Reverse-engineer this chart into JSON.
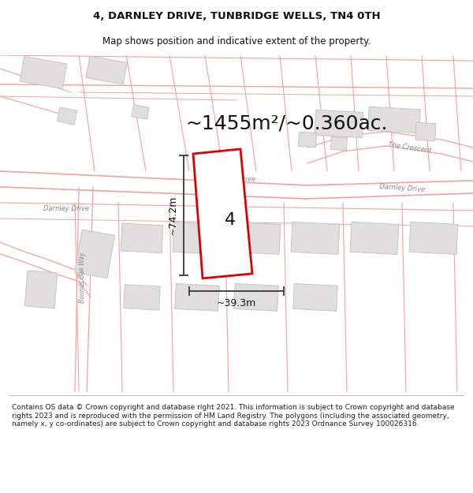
{
  "title_line1": "4, DARNLEY DRIVE, TUNBRIDGE WELLS, TN4 0TH",
  "title_line2": "Map shows position and indicative extent of the property.",
  "area_text": "~1455m²/~0.360ac.",
  "property_number": "4",
  "dim_height": "~74.2m",
  "dim_width": "~39.3m",
  "footer_text": "Contains OS data © Crown copyright and database right 2021. This information is subject to Crown copyright and database rights 2023 and is reproduced with the permission of HM Land Registry. The polygons (including the associated geometry, namely x, y co-ordinates) are subject to Crown copyright and database rights 2023 Ordnance Survey 100026316.",
  "map_bg": "#ffffff",
  "road_line_color": "#f5a0a0",
  "building_color": "#e0dede",
  "building_edge": "#c8c4c4",
  "plot_edge": "#dd0000",
  "dim_color": "#444444",
  "text_color": "#111111",
  "road_label_color": "#888888",
  "title_fontsize": 9.5,
  "subtitle_fontsize": 8.5,
  "area_fontsize": 18,
  "propnum_fontsize": 16,
  "dim_fontsize": 8,
  "road_label_fontsize": 6,
  "footer_fontsize": 6.5
}
